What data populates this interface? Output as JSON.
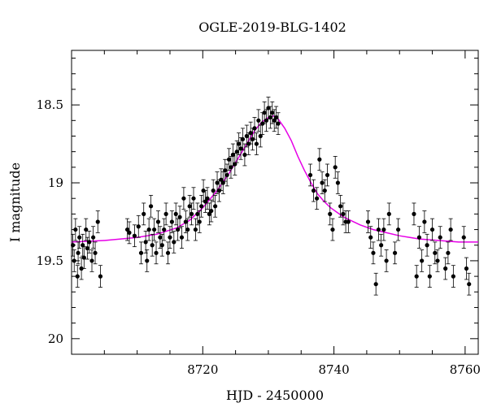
{
  "chart_data": {
    "type": "scatter",
    "title": "OGLE-2019-BLG-1402",
    "xlabel": "HJD - 2450000",
    "ylabel": "I magnitude",
    "xlim": [
      8700,
      8762
    ],
    "ylim": [
      20.1,
      18.15
    ],
    "y_inverted": true,
    "xticks": [
      8720,
      8740,
      8760
    ],
    "yticks": [
      18.5,
      19,
      19.5,
      20
    ],
    "ytick_labels": [
      "18.5",
      "19",
      "19.5",
      "20"
    ],
    "xtick_labels": [
      "8720",
      "8740",
      "8760"
    ],
    "grid": false,
    "colors": {
      "points": "#000000",
      "model": "#e600e6"
    },
    "series": [
      {
        "kind": "observations",
        "x": [
          8700.2,
          8700.4,
          8700.6,
          8700.9,
          8701.0,
          8701.2,
          8701.5,
          8701.7,
          8701.9,
          8702.2,
          8702.4,
          8702.7,
          8703.1,
          8703.3,
          8703.6,
          8704.0,
          8704.4,
          8708.5,
          8708.8,
          8709.6,
          8710.2,
          8710.6,
          8711.0,
          8711.3,
          8711.5,
          8711.8,
          8712.1,
          8712.3,
          8712.6,
          8712.9,
          8713.2,
          8713.5,
          8713.8,
          8714.1,
          8714.4,
          8714.7,
          8715.0,
          8715.3,
          8715.6,
          8715.9,
          8716.2,
          8716.5,
          8716.8,
          8717.1,
          8717.4,
          8717.7,
          8718.0,
          8718.3,
          8718.6,
          8718.9,
          8719.2,
          8719.5,
          8719.8,
          8720.1,
          8720.4,
          8720.7,
          8721.0,
          8721.3,
          8721.6,
          8721.9,
          8722.2,
          8722.5,
          8722.8,
          8723.1,
          8723.4,
          8723.7,
          8724.0,
          8724.3,
          8724.6,
          8724.9,
          8725.2,
          8725.5,
          8725.8,
          8726.1,
          8726.4,
          8726.7,
          8727.0,
          8727.3,
          8727.6,
          8727.9,
          8728.2,
          8728.5,
          8728.8,
          8729.1,
          8729.4,
          8729.7,
          8730.0,
          8730.3,
          8730.6,
          8730.9,
          8731.2,
          8731.5,
          8736.4,
          8736.9,
          8737.4,
          8737.8,
          8738.2,
          8738.6,
          8739.0,
          8739.4,
          8739.8,
          8740.2,
          8740.6,
          8741.0,
          8741.4,
          8741.8,
          8742.2,
          8745.2,
          8745.6,
          8746.0,
          8746.4,
          8746.8,
          8747.2,
          8747.6,
          8748.0,
          8748.4,
          8749.3,
          8749.8,
          8752.2,
          8752.6,
          8753.0,
          8753.4,
          8753.8,
          8754.2,
          8754.6,
          8755.0,
          8755.4,
          8755.8,
          8756.2,
          8757.0,
          8757.4,
          8757.8,
          8758.2,
          8759.8,
          8760.2,
          8760.6
        ],
        "y": [
          19.4,
          19.5,
          19.3,
          19.6,
          19.45,
          19.35,
          19.55,
          19.4,
          19.48,
          19.3,
          19.42,
          19.38,
          19.5,
          19.35,
          19.45,
          19.25,
          19.6,
          19.3,
          19.32,
          19.34,
          19.28,
          19.45,
          19.2,
          19.38,
          19.5,
          19.3,
          19.15,
          19.4,
          19.3,
          19.45,
          19.25,
          19.35,
          19.4,
          19.3,
          19.2,
          19.45,
          19.35,
          19.25,
          19.38,
          19.2,
          19.3,
          19.22,
          19.35,
          19.1,
          19.25,
          19.3,
          19.15,
          19.2,
          19.1,
          19.3,
          19.2,
          19.25,
          19.15,
          19.05,
          19.12,
          19.1,
          19.2,
          19.18,
          19.05,
          19.15,
          19.0,
          19.05,
          18.98,
          19.0,
          18.92,
          18.95,
          18.85,
          18.9,
          18.82,
          18.88,
          18.8,
          18.75,
          18.78,
          18.72,
          18.82,
          18.7,
          18.75,
          18.68,
          18.72,
          18.65,
          18.75,
          18.6,
          18.7,
          18.62,
          18.55,
          18.6,
          18.52,
          18.58,
          18.55,
          18.6,
          18.58,
          18.62,
          18.95,
          19.05,
          19.1,
          18.85,
          19.0,
          19.05,
          18.95,
          19.2,
          19.3,
          18.9,
          19.0,
          19.15,
          19.2,
          19.25,
          19.25,
          19.25,
          19.35,
          19.45,
          19.65,
          19.3,
          19.4,
          19.3,
          19.5,
          19.2,
          19.45,
          19.3,
          19.2,
          19.6,
          19.35,
          19.5,
          19.25,
          19.4,
          19.6,
          19.3,
          19.45,
          19.5,
          19.35,
          19.55,
          19.45,
          19.3,
          19.6,
          19.35,
          19.55,
          19.65
        ],
        "yerr": 0.07
      },
      {
        "kind": "model",
        "x": [
          8700,
          8705,
          8710,
          8713,
          8716,
          8718,
          8720,
          8722,
          8724,
          8726,
          8727,
          8728,
          8729,
          8730,
          8730.8,
          8731.5,
          8732.5,
          8733.5,
          8734.5,
          8735.5,
          8736.5,
          8737.5,
          8738.5,
          8739.5,
          8740.5,
          8741.5,
          8742.5,
          8744,
          8746,
          8748,
          8750,
          8753,
          8756,
          8759,
          8762
        ],
        "y": [
          19.38,
          19.37,
          19.35,
          19.33,
          19.29,
          19.24,
          19.16,
          19.06,
          18.94,
          18.8,
          18.73,
          18.66,
          18.61,
          18.58,
          18.57,
          18.59,
          18.65,
          18.73,
          18.83,
          18.92,
          19.0,
          19.07,
          19.12,
          19.16,
          19.19,
          19.22,
          19.24,
          19.27,
          19.3,
          19.32,
          19.34,
          19.36,
          19.37,
          19.38,
          19.38
        ]
      }
    ]
  }
}
